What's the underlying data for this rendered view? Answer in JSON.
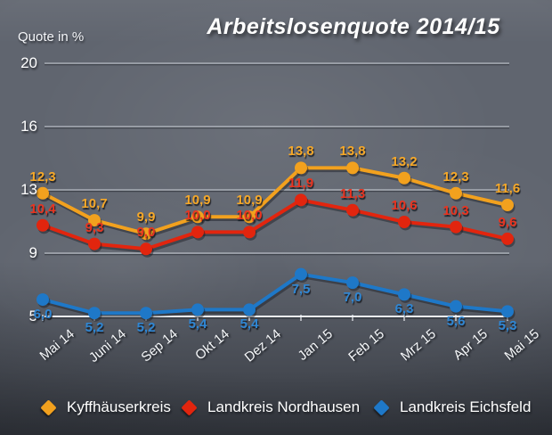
{
  "title": "Arbeitslosenquote 2014/15",
  "colors": {
    "background": "#60656f",
    "grid": "#dde2e9",
    "axis": "#eef1f5",
    "text": "#ffffff"
  },
  "chart_data": {
    "type": "line",
    "title": "Arbeitslosenquote 2014/15",
    "ylabel": "Quote in %",
    "xlabel": "",
    "categories": [
      "Mai 14",
      "Juni 14",
      "Sep 14",
      "Okt 14",
      "Dez 14",
      "Jan 15",
      "Feb 15",
      "Mrz 15",
      "Apr 15",
      "Mai 15"
    ],
    "yticks": [
      5,
      9,
      13,
      16,
      20
    ],
    "ytick_labels": [
      "5",
      "9",
      "13",
      "16",
      "20"
    ],
    "ylim": [
      5,
      20
    ],
    "grid": true,
    "legend_position": "bottom",
    "decimal_separator": ",",
    "series": [
      {
        "name": "Kyffhäuserkreis",
        "color": "#F2A11E",
        "label_color": "#F6A828",
        "value_label_position": "above",
        "values": [
          12.3,
          10.7,
          9.9,
          10.9,
          10.9,
          13.8,
          13.8,
          13.2,
          12.3,
          11.6
        ]
      },
      {
        "name": "Landkreis Nordhausen",
        "color": "#E2250E",
        "label_color": "#E93420",
        "value_label_position": "above",
        "values": [
          10.4,
          9.3,
          9.0,
          10.0,
          10.0,
          11.9,
          11.3,
          10.6,
          10.3,
          9.6
        ]
      },
      {
        "name": "Landkreis Eichsfeld",
        "color": "#1E78C8",
        "label_color": "#2F86D3",
        "value_label_position": "below",
        "values": [
          6.0,
          5.2,
          5.2,
          5.4,
          5.4,
          7.5,
          7.0,
          6.3,
          5.6,
          5.3
        ]
      }
    ]
  }
}
